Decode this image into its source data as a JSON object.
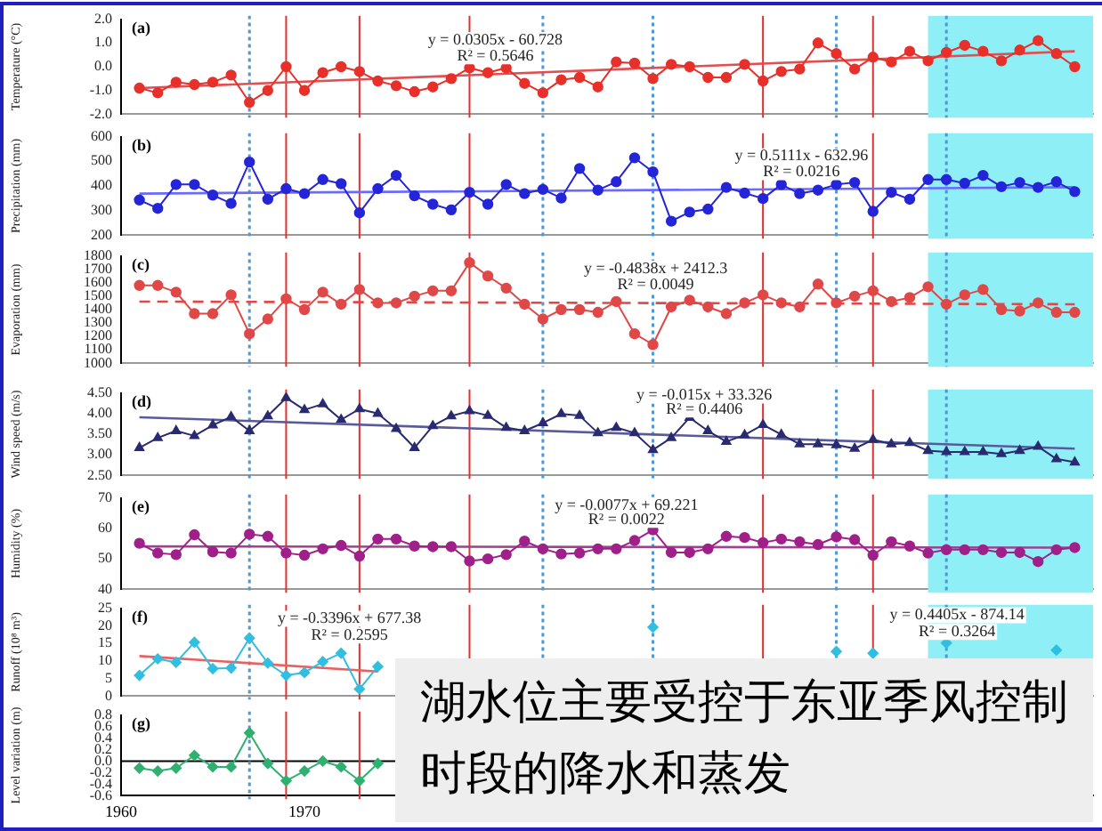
{
  "chart_data": [
    {
      "type": "line",
      "ylabel": "Temperature (°C)",
      "tick_labels": "y",
      "xlim": [
        1960,
        2013
      ],
      "ylim": [
        -2,
        2
      ],
      "yticks": [
        {
          "value": -2,
          "label": "-2.0"
        },
        {
          "value": -1,
          "label": "-1.0"
        },
        {
          "value": 0,
          "label": "0.0"
        },
        {
          "value": 1,
          "label": "1.0"
        },
        {
          "value": 2,
          "label": "2.0"
        }
      ],
      "x": [
        1961,
        1962,
        1963,
        1964,
        1965,
        1966,
        1967,
        1968,
        1969,
        1970,
        1971,
        1972,
        1973,
        1974,
        1975,
        1976,
        1977,
        1978,
        1979,
        1980,
        1981,
        1982,
        1983,
        1984,
        1985,
        1986,
        1987,
        1988,
        1989,
        1990,
        1991,
        1992,
        1993,
        1994,
        1995,
        1996,
        1997,
        1998,
        1999,
        2000,
        2001,
        2002,
        2003,
        2004,
        2005,
        2006,
        2007,
        2008,
        2009,
        2010,
        2011,
        2012
      ],
      "series": [
        {
          "color": "#e8302a",
          "marker": "circle",
          "values": [
            -0.9,
            -1.1,
            -0.65,
            -0.75,
            -0.65,
            -0.35,
            -1.5,
            -1.0,
            0.0,
            -1.0,
            -0.25,
            0.0,
            -0.2,
            -0.6,
            -0.8,
            -1.05,
            -0.85,
            -0.5,
            -0.05,
            -0.25,
            -0.05,
            -0.7,
            -1.1,
            -0.55,
            -0.45,
            -0.85,
            0.2,
            0.15,
            -0.5,
            0.1,
            0.0,
            -0.45,
            -0.45,
            0.1,
            -0.6,
            -0.2,
            -0.1,
            1.0,
            0.55,
            -0.1,
            0.4,
            0.2,
            0.65,
            0.25,
            0.6,
            0.9,
            0.65,
            0.25,
            0.7,
            1.1,
            0.55,
            0.0
          ]
        },
        {
          "type": "line",
          "marker": "none",
          "color": "#e05050",
          "x": [
            1961,
            2012
          ],
          "values": [
            -0.9,
            0.65
          ]
        }
      ],
      "annotations": [
        "(a)",
        "y = 0.0305x - 60.728",
        "R² = 0.5646"
      ],
      "ref_lines": [
        {
          "axis": "x",
          "value": 1969,
          "color": "#e03030"
        },
        {
          "axis": "x",
          "value": 1973,
          "color": "#e03030"
        },
        {
          "axis": "x",
          "value": 1979,
          "color": "#e03030"
        },
        {
          "axis": "x",
          "value": 1995,
          "color": "#e03030"
        },
        {
          "axis": "x",
          "value": 2001,
          "color": "#e03030"
        },
        {
          "axis": "x",
          "value": 1967,
          "color": "#5098d0",
          "line_style": "dotted"
        },
        {
          "axis": "x",
          "value": 1983,
          "color": "#5098d0",
          "line_style": "dotted"
        },
        {
          "axis": "x",
          "value": 1989,
          "color": "#5098d0",
          "line_style": "dotted"
        },
        {
          "axis": "x",
          "value": 1999,
          "color": "#5098d0",
          "line_style": "dotted"
        },
        {
          "axis": "x",
          "value": 2005,
          "color": "#5098d0",
          "line_style": "dotted"
        }
      ],
      "bands": [
        {
          "axis": "x",
          "from": 2004,
          "to": 2013,
          "color": "#8ef0f6"
        }
      ]
    },
    {
      "type": "line",
      "ylabel": "Precipitation (mm)",
      "tick_labels": "y",
      "xlim": [
        1960,
        2013
      ],
      "ylim": [
        200,
        600
      ],
      "yticks": [
        200,
        300,
        400,
        500,
        600
      ],
      "x": [
        1961,
        1962,
        1963,
        1964,
        1965,
        1966,
        1967,
        1968,
        1969,
        1970,
        1971,
        1972,
        1973,
        1974,
        1975,
        1976,
        1977,
        1978,
        1979,
        1980,
        1981,
        1982,
        1983,
        1984,
        1985,
        1986,
        1987,
        1988,
        1989,
        1990,
        1991,
        1992,
        1993,
        1994,
        1995,
        1996,
        1997,
        1998,
        1999,
        2000,
        2001,
        2002,
        2003,
        2004,
        2005,
        2006,
        2007,
        2008,
        2009,
        2010,
        2011,
        2012
      ],
      "series": [
        {
          "color": "#2424d8",
          "marker": "circle",
          "values": [
            343,
            309,
            406,
            406,
            363,
            329,
            497,
            346,
            389,
            369,
            426,
            409,
            291,
            389,
            443,
            360,
            326,
            303,
            374,
            326,
            406,
            369,
            386,
            351,
            471,
            383,
            417,
            514,
            457,
            257,
            294,
            306,
            394,
            371,
            349,
            406,
            369,
            383,
            406,
            414,
            297,
            374,
            346,
            426,
            426,
            411,
            443,
            397,
            414,
            394,
            417,
            377
          ]
        },
        {
          "type": "line",
          "marker": "none",
          "color": "#6a6aff",
          "x": [
            1961,
            2012
          ],
          "values": [
            369,
            395
          ]
        }
      ],
      "annotations": [
        "(b)",
        "y = 0.5111x - 632.96",
        "R² = 0.0216"
      ],
      "ref_lines": [
        {
          "axis": "x",
          "value": 1969,
          "color": "#e03030"
        },
        {
          "axis": "x",
          "value": 1973,
          "color": "#e03030"
        },
        {
          "axis": "x",
          "value": 1979,
          "color": "#e03030"
        },
        {
          "axis": "x",
          "value": 1995,
          "color": "#e03030"
        },
        {
          "axis": "x",
          "value": 2001,
          "color": "#e03030"
        },
        {
          "axis": "x",
          "value": 1967,
          "color": "#5098d0",
          "line_style": "dotted"
        },
        {
          "axis": "x",
          "value": 1983,
          "color": "#5098d0",
          "line_style": "dotted"
        },
        {
          "axis": "x",
          "value": 1989,
          "color": "#5098d0",
          "line_style": "dotted"
        },
        {
          "axis": "x",
          "value": 1999,
          "color": "#5098d0",
          "line_style": "dotted"
        },
        {
          "axis": "x",
          "value": 2005,
          "color": "#5098d0",
          "line_style": "dotted"
        }
      ],
      "bands": [
        {
          "axis": "x",
          "from": 2004,
          "to": 2013,
          "color": "#8ef0f6"
        }
      ]
    },
    {
      "type": "line",
      "ylabel": "Evaporation (mm)",
      "tick_labels": "y",
      "xlim": [
        1960,
        2013
      ],
      "ylim": [
        1000,
        1800
      ],
      "yticks": [
        1000,
        1100,
        1200,
        1300,
        1400,
        1500,
        1600,
        1700,
        1800
      ],
      "x": [
        1961,
        1962,
        1963,
        1964,
        1965,
        1966,
        1967,
        1968,
        1969,
        1970,
        1971,
        1972,
        1973,
        1974,
        1975,
        1976,
        1977,
        1978,
        1979,
        1980,
        1981,
        1982,
        1983,
        1984,
        1985,
        1986,
        1987,
        1988,
        1989,
        1990,
        1991,
        1992,
        1993,
        1994,
        1995,
        1996,
        1997,
        1998,
        1999,
        2000,
        2001,
        2002,
        2003,
        2004,
        2005,
        2006,
        2007,
        2008,
        2009,
        2010,
        2011,
        2012
      ],
      "series": [
        {
          "color": "#e04848",
          "marker": "circle",
          "values": [
            1580,
            1580,
            1530,
            1370,
            1370,
            1510,
            1220,
            1330,
            1480,
            1400,
            1530,
            1440,
            1550,
            1450,
            1450,
            1500,
            1540,
            1540,
            1750,
            1650,
            1560,
            1440,
            1330,
            1400,
            1400,
            1380,
            1460,
            1220,
            1140,
            1420,
            1470,
            1420,
            1370,
            1450,
            1510,
            1450,
            1420,
            1590,
            1450,
            1500,
            1540,
            1460,
            1490,
            1570,
            1440,
            1510,
            1550,
            1400,
            1390,
            1450,
            1380,
            1380
          ]
        },
        {
          "type": "line",
          "marker": "none",
          "line_style": "dashed",
          "color": "#e04848",
          "x": [
            1961,
            2012
          ],
          "values": [
            1460,
            1440
          ]
        }
      ],
      "annotations": [
        "(c)",
        "y = -0.4838x + 2412.3",
        "R² = 0.0049"
      ],
      "ref_lines": [
        {
          "axis": "x",
          "value": 1969,
          "color": "#e03030"
        },
        {
          "axis": "x",
          "value": 1973,
          "color": "#e03030"
        },
        {
          "axis": "x",
          "value": 1979,
          "color": "#e03030"
        },
        {
          "axis": "x",
          "value": 1995,
          "color": "#e03030"
        },
        {
          "axis": "x",
          "value": 2001,
          "color": "#e03030"
        },
        {
          "axis": "x",
          "value": 1967,
          "color": "#5098d0",
          "line_style": "dotted"
        },
        {
          "axis": "x",
          "value": 1983,
          "color": "#5098d0",
          "line_style": "dotted"
        },
        {
          "axis": "x",
          "value": 1989,
          "color": "#5098d0",
          "line_style": "dotted"
        },
        {
          "axis": "x",
          "value": 1999,
          "color": "#5098d0",
          "line_style": "dotted"
        },
        {
          "axis": "x",
          "value": 2005,
          "color": "#5098d0",
          "line_style": "dotted"
        }
      ],
      "bands": [
        {
          "axis": "x",
          "from": 2004,
          "to": 2013,
          "color": "#8ef0f6"
        }
      ]
    },
    {
      "type": "line",
      "ylabel": "Wind speed (m/s)",
      "tick_labels": "y",
      "xlim": [
        1960,
        2013
      ],
      "ylim": [
        2.5,
        4.5
      ],
      "yticks": [
        {
          "value": 2.5,
          "label": "2.50"
        },
        {
          "value": 3,
          "label": "3.00"
        },
        {
          "value": 3.5,
          "label": "3.50"
        },
        {
          "value": 4,
          "label": "4.00"
        },
        {
          "value": 4.5,
          "label": "4.50"
        }
      ],
      "x": [
        1961,
        1962,
        1963,
        1964,
        1965,
        1966,
        1967,
        1968,
        1969,
        1970,
        1971,
        1972,
        1973,
        1974,
        1975,
        1976,
        1977,
        1978,
        1979,
        1980,
        1981,
        1982,
        1983,
        1984,
        1985,
        1986,
        1987,
        1988,
        1989,
        1990,
        1991,
        1992,
        1993,
        1994,
        1995,
        1996,
        1997,
        1998,
        1999,
        2000,
        2001,
        2002,
        2003,
        2004,
        2005,
        2006,
        2007,
        2008,
        2009,
        2010,
        2011,
        2012
      ],
      "series": [
        {
          "color": "#2a2a70",
          "marker": "triangle",
          "values": [
            3.17,
            3.41,
            3.58,
            3.46,
            3.72,
            3.92,
            3.58,
            3.94,
            4.38,
            4.09,
            4.23,
            3.85,
            4.11,
            4.0,
            3.63,
            3.17,
            3.7,
            3.94,
            4.06,
            3.95,
            3.66,
            3.58,
            3.77,
            3.99,
            3.95,
            3.53,
            3.66,
            3.53,
            3.12,
            3.41,
            3.9,
            3.58,
            3.32,
            3.48,
            3.73,
            3.49,
            3.26,
            3.26,
            3.24,
            3.15,
            3.37,
            3.26,
            3.29,
            3.1,
            3.07,
            3.07,
            3.07,
            3.02,
            3.1,
            3.2,
            2.9,
            2.82
          ]
        },
        {
          "type": "line",
          "marker": "none",
          "color": "#5a5a9a",
          "x": [
            1961,
            2012
          ],
          "values": [
            3.91,
            3.15
          ]
        }
      ],
      "annotations": [
        "(d)",
        "y = -0.015x + 33.326",
        "R² = 0.4406"
      ],
      "ref_lines": [
        {
          "axis": "x",
          "value": 1969,
          "color": "#e03030"
        },
        {
          "axis": "x",
          "value": 1973,
          "color": "#e03030"
        },
        {
          "axis": "x",
          "value": 1979,
          "color": "#e03030"
        },
        {
          "axis": "x",
          "value": 1995,
          "color": "#e03030"
        },
        {
          "axis": "x",
          "value": 2001,
          "color": "#e03030"
        },
        {
          "axis": "x",
          "value": 1967,
          "color": "#5098d0",
          "line_style": "dotted"
        },
        {
          "axis": "x",
          "value": 1983,
          "color": "#5098d0",
          "line_style": "dotted"
        },
        {
          "axis": "x",
          "value": 1989,
          "color": "#5098d0",
          "line_style": "dotted"
        },
        {
          "axis": "x",
          "value": 1999,
          "color": "#5098d0",
          "line_style": "dotted"
        },
        {
          "axis": "x",
          "value": 2005,
          "color": "#5098d0",
          "line_style": "dotted"
        }
      ],
      "bands": [
        {
          "axis": "x",
          "from": 2004,
          "to": 2013,
          "color": "#8ef0f6"
        }
      ]
    },
    {
      "type": "line",
      "ylabel": "Humidity (%)",
      "tick_labels": "y",
      "xlim": [
        1960,
        2013
      ],
      "ylim": [
        40,
        70
      ],
      "yticks": [
        40,
        50,
        60,
        70
      ],
      "x": [
        1961,
        1962,
        1963,
        1964,
        1965,
        1966,
        1967,
        1968,
        1969,
        1970,
        1971,
        1972,
        1973,
        1974,
        1975,
        1976,
        1977,
        1978,
        1979,
        1980,
        1981,
        1982,
        1983,
        1984,
        1985,
        1986,
        1987,
        1988,
        1989,
        1990,
        1991,
        1992,
        1993,
        1994,
        1995,
        1996,
        1997,
        1998,
        1999,
        2000,
        2001,
        2002,
        2003,
        2004,
        2005,
        2006,
        2007,
        2008,
        2009,
        2010,
        2011,
        2012
      ],
      "series": [
        {
          "color": "#a0208a",
          "marker": "circle",
          "values": [
            55.1,
            51.9,
            51.4,
            57.9,
            52.3,
            51.9,
            58.1,
            57.4,
            51.9,
            51.2,
            53.3,
            54.4,
            50.9,
            56.5,
            56.5,
            54.2,
            54.0,
            54.0,
            49.3,
            50.0,
            51.4,
            55.8,
            53.3,
            51.6,
            51.9,
            53.3,
            53.3,
            56.0,
            59.5,
            52.1,
            52.1,
            53.3,
            57.4,
            57.0,
            55.3,
            56.5,
            55.6,
            54.7,
            57.2,
            56.3,
            51.2,
            55.6,
            54.2,
            51.9,
            53.0,
            53.0,
            53.0,
            52.1,
            52.1,
            49.1,
            53.0,
            53.7
          ]
        },
        {
          "type": "line",
          "marker": "none",
          "color": "#a04090",
          "x": [
            1961,
            2012
          ],
          "values": [
            54.1,
            53.7
          ]
        }
      ],
      "annotations": [
        "(e)",
        "y = -0.0077x + 69.221",
        "R² = 0.0022"
      ],
      "ref_lines": [
        {
          "axis": "x",
          "value": 1969,
          "color": "#e03030"
        },
        {
          "axis": "x",
          "value": 1973,
          "color": "#e03030"
        },
        {
          "axis": "x",
          "value": 1979,
          "color": "#e03030"
        },
        {
          "axis": "x",
          "value": 1995,
          "color": "#e03030"
        },
        {
          "axis": "x",
          "value": 2001,
          "color": "#e03030"
        },
        {
          "axis": "x",
          "value": 1967,
          "color": "#5098d0",
          "line_style": "dotted"
        },
        {
          "axis": "x",
          "value": 1983,
          "color": "#5098d0",
          "line_style": "dotted"
        },
        {
          "axis": "x",
          "value": 1989,
          "color": "#5098d0",
          "line_style": "dotted"
        },
        {
          "axis": "x",
          "value": 1999,
          "color": "#5098d0",
          "line_style": "dotted"
        },
        {
          "axis": "x",
          "value": 2005,
          "color": "#5098d0",
          "line_style": "dotted"
        }
      ],
      "bands": [
        {
          "axis": "x",
          "from": 2004,
          "to": 2013,
          "color": "#8ef0f6"
        }
      ]
    },
    {
      "type": "line",
      "ylabel": "Runoff (10⁸ m³)",
      "tick_labels": "y",
      "xlim": [
        1960,
        2013
      ],
      "ylim": [
        0,
        25
      ],
      "yticks": [
        0,
        5,
        10,
        15,
        20,
        25
      ],
      "x": [
        1961,
        1962,
        1963,
        1964,
        1965,
        1966,
        1967,
        1968,
        1969,
        1970,
        1971,
        1972,
        1973,
        1974,
        1975,
        1976,
        1977,
        1978,
        1979,
        1980,
        1981,
        1982,
        1983,
        1984,
        1985,
        1986,
        1987,
        1988,
        1989,
        1990,
        1991,
        1992,
        1993,
        1994,
        1995,
        1996,
        1997,
        1998,
        1999,
        2000,
        2001,
        2002,
        2003,
        2004,
        2005,
        2006,
        2007,
        2008,
        2009,
        2010,
        2011
      ],
      "series": [
        {
          "color": "#30bfe0",
          "marker": "diamond",
          "values": [
            5.9,
            10.6,
            9.6,
            15.3,
            7.8,
            8.0,
            16.5,
            9.4,
            5.9,
            6.7,
            9.8,
            12.2,
            2.0,
            8.4,
            null,
            null,
            null,
            null,
            null,
            null,
            null,
            null,
            null,
            null,
            null,
            null,
            null,
            null,
            19.6,
            null,
            null,
            null,
            null,
            null,
            null,
            null,
            null,
            null,
            12.7,
            null,
            12.2,
            null,
            null,
            null,
            15.1,
            null,
            null,
            null,
            null,
            null,
            13.1
          ]
        },
        {
          "type": "line",
          "marker": "none",
          "color": "#e86060",
          "x": [
            1961,
            1974
          ],
          "values": [
            11.4,
            7.0
          ]
        }
      ],
      "annotations": [
        "(f)",
        "y = -0.3396x + 677.38",
        "R² = 0.2595",
        "y = 0.4405x - 874.14",
        "R² = 0.3264"
      ],
      "ref_lines": [
        {
          "axis": "x",
          "value": 1969,
          "color": "#e03030"
        },
        {
          "axis": "x",
          "value": 1973,
          "color": "#e03030"
        },
        {
          "axis": "x",
          "value": 1979,
          "color": "#e03030"
        },
        {
          "axis": "x",
          "value": 1995,
          "color": "#e03030"
        },
        {
          "axis": "x",
          "value": 2001,
          "color": "#e03030"
        },
        {
          "axis": "x",
          "value": 1967,
          "color": "#5098d0",
          "line_style": "dotted"
        },
        {
          "axis": "x",
          "value": 1983,
          "color": "#5098d0",
          "line_style": "dotted"
        },
        {
          "axis": "x",
          "value": 1989,
          "color": "#5098d0",
          "line_style": "dotted"
        },
        {
          "axis": "x",
          "value": 1999,
          "color": "#5098d0",
          "line_style": "dotted"
        },
        {
          "axis": "x",
          "value": 2005,
          "color": "#5098d0",
          "line_style": "dotted"
        }
      ],
      "bands": [
        {
          "axis": "x",
          "from": 2004,
          "to": 2013,
          "color": "#8ef0f6"
        }
      ]
    },
    {
      "type": "line",
      "ylabel": "Level variation (m)",
      "xlim": [
        1960,
        2013
      ],
      "xticks": [
        1960,
        1970
      ],
      "ylim": [
        -0.6,
        0.8
      ],
      "yticks": [
        {
          "value": -0.6,
          "label": "-0.6"
        },
        {
          "value": -0.4,
          "label": "-0.4"
        },
        {
          "value": -0.2,
          "label": "-0.2"
        },
        {
          "value": 0,
          "label": "0.0"
        },
        {
          "value": 0.2,
          "label": "0.2"
        },
        {
          "value": 0.4,
          "label": "0.4"
        },
        {
          "value": 0.6,
          "label": "0.6"
        },
        {
          "value": 0.8,
          "label": "0.8"
        }
      ],
      "x": [
        1961,
        1962,
        1963,
        1964,
        1965,
        1966,
        1967,
        1968,
        1969,
        1970,
        1971,
        1972,
        1973,
        1974
      ],
      "series": [
        {
          "color": "#30b070",
          "marker": "diamond",
          "values": [
            -0.12,
            -0.17,
            -0.12,
            0.1,
            -0.1,
            -0.1,
            0.49,
            -0.04,
            -0.34,
            -0.17,
            0.0,
            -0.1,
            -0.34,
            -0.04
          ]
        }
      ],
      "annotations": [
        "(g)",
        "湖水位主要受控于东亚季风控制时段的降水和蒸发"
      ],
      "ref_lines": [
        {
          "axis": "y",
          "value": 0,
          "color": "#000000"
        },
        {
          "axis": "x",
          "value": 1969,
          "color": "#e03030"
        },
        {
          "axis": "x",
          "value": 1973,
          "color": "#e03030"
        },
        {
          "axis": "x",
          "value": 1967,
          "color": "#5098d0",
          "line_style": "dotted"
        }
      ]
    }
  ]
}
